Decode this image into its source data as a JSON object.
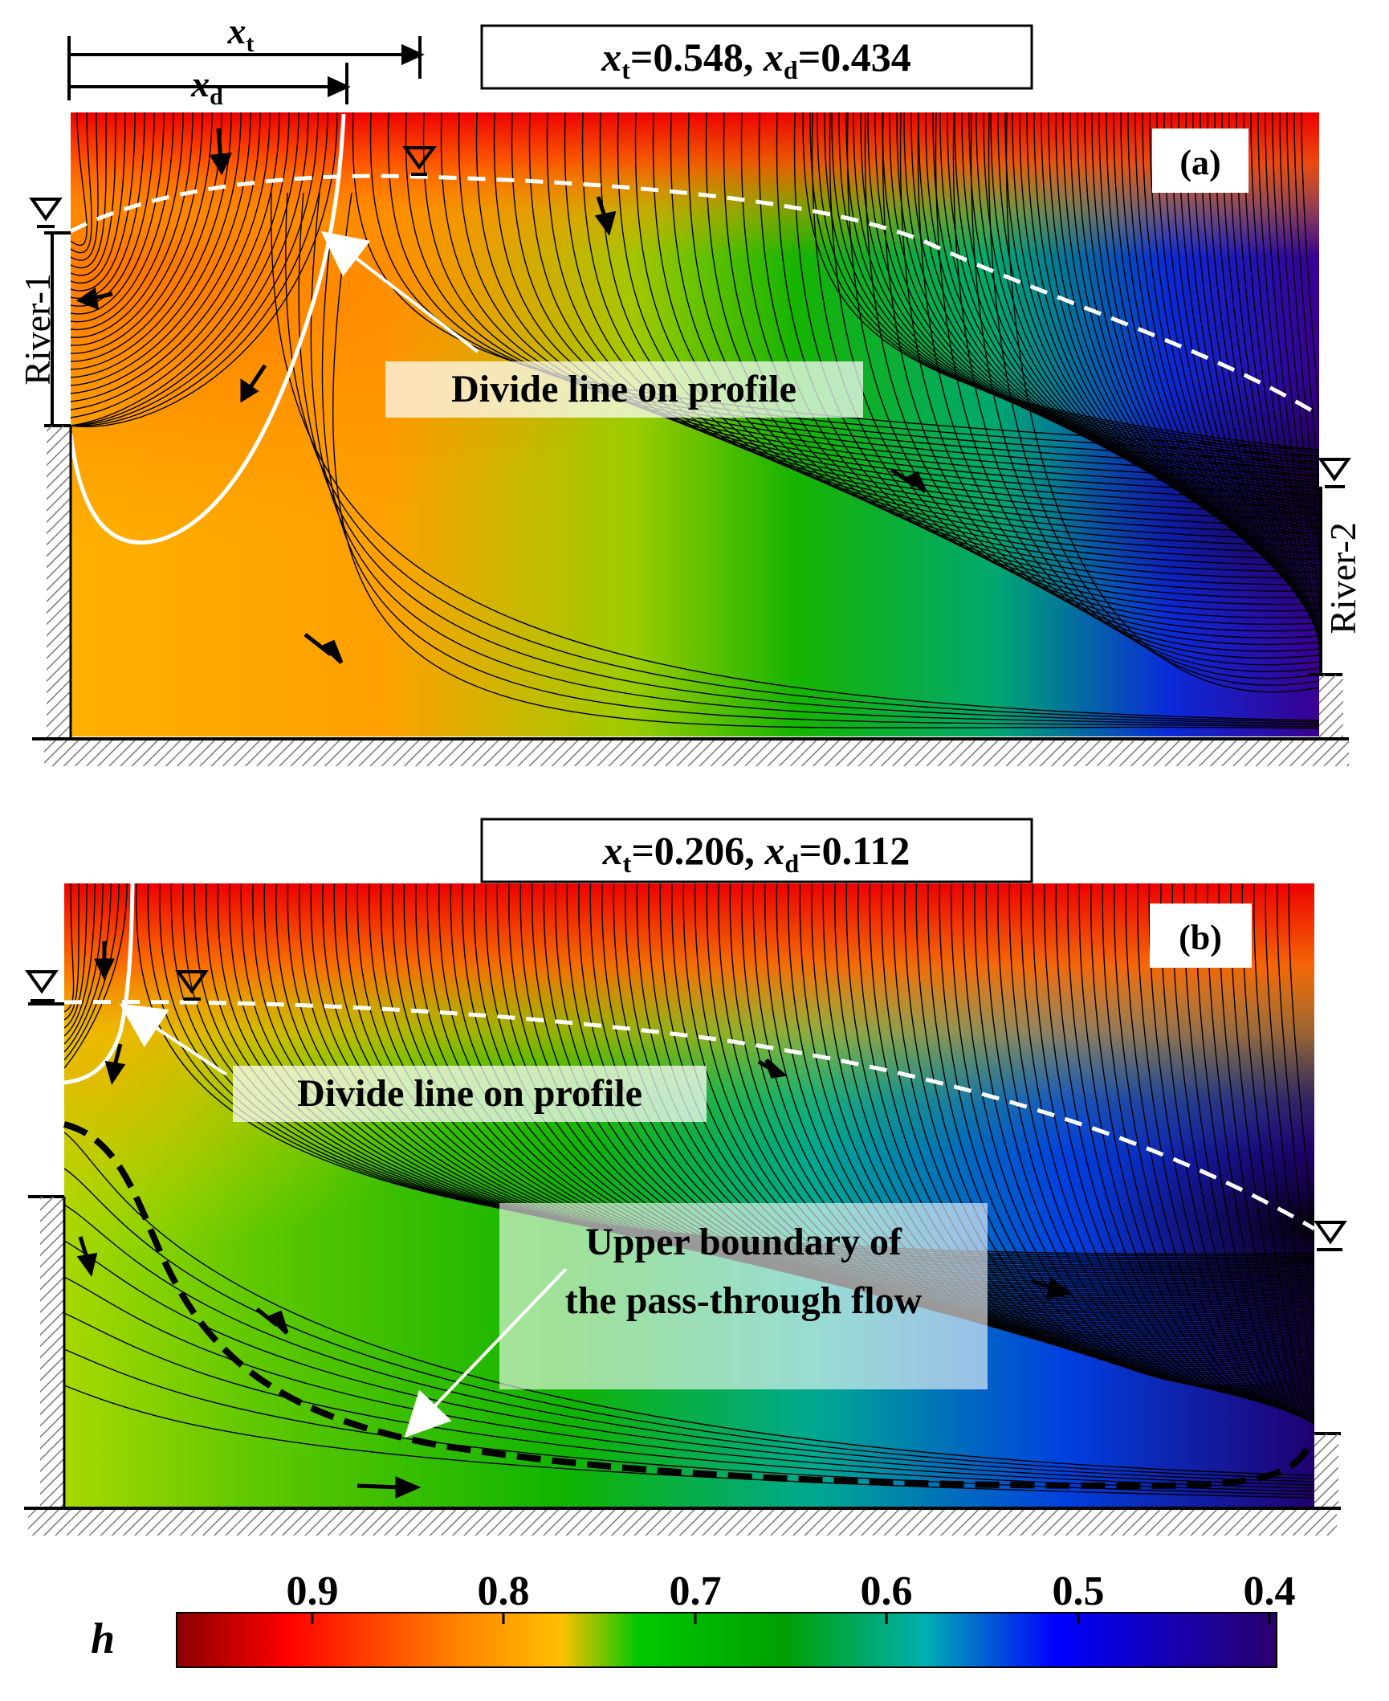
{
  "panel_a": {
    "tag": "(a)",
    "info": {
      "xt_symbol": "x",
      "xt_sub": "t",
      "xt_value": "=0.548,",
      "xd_symbol": "x",
      "xd_sub": "d",
      "xd_value": "=0.434"
    },
    "dim_xt_symbol": "x",
    "dim_xt_sub": "t",
    "dim_xd_symbol": "x",
    "dim_xd_sub": "d",
    "river_left": "River-1",
    "river_right": "River-2",
    "divide_label": "Divide line on profile"
  },
  "panel_b": {
    "tag": "(b)",
    "info": {
      "xt_symbol": "x",
      "xt_sub": "t",
      "xt_value": "=0.206,",
      "xd_symbol": "x",
      "xd_sub": "d",
      "xd_value": "=0.112"
    },
    "divide_label": "Divide line on profile",
    "upper_label_1": "Upper boundary of",
    "upper_label_2": "the pass-through flow"
  },
  "colorbar": {
    "symbol": "h",
    "ticks": [
      "0.9",
      "0.8",
      "0.7",
      "0.6",
      "0.5",
      "0.4"
    ],
    "colors": [
      "#8b0000",
      "#ff0000",
      "#ff7f00",
      "#ffc000",
      "#00cc00",
      "#00b0b0",
      "#0000ff",
      "#2a006a"
    ]
  }
}
